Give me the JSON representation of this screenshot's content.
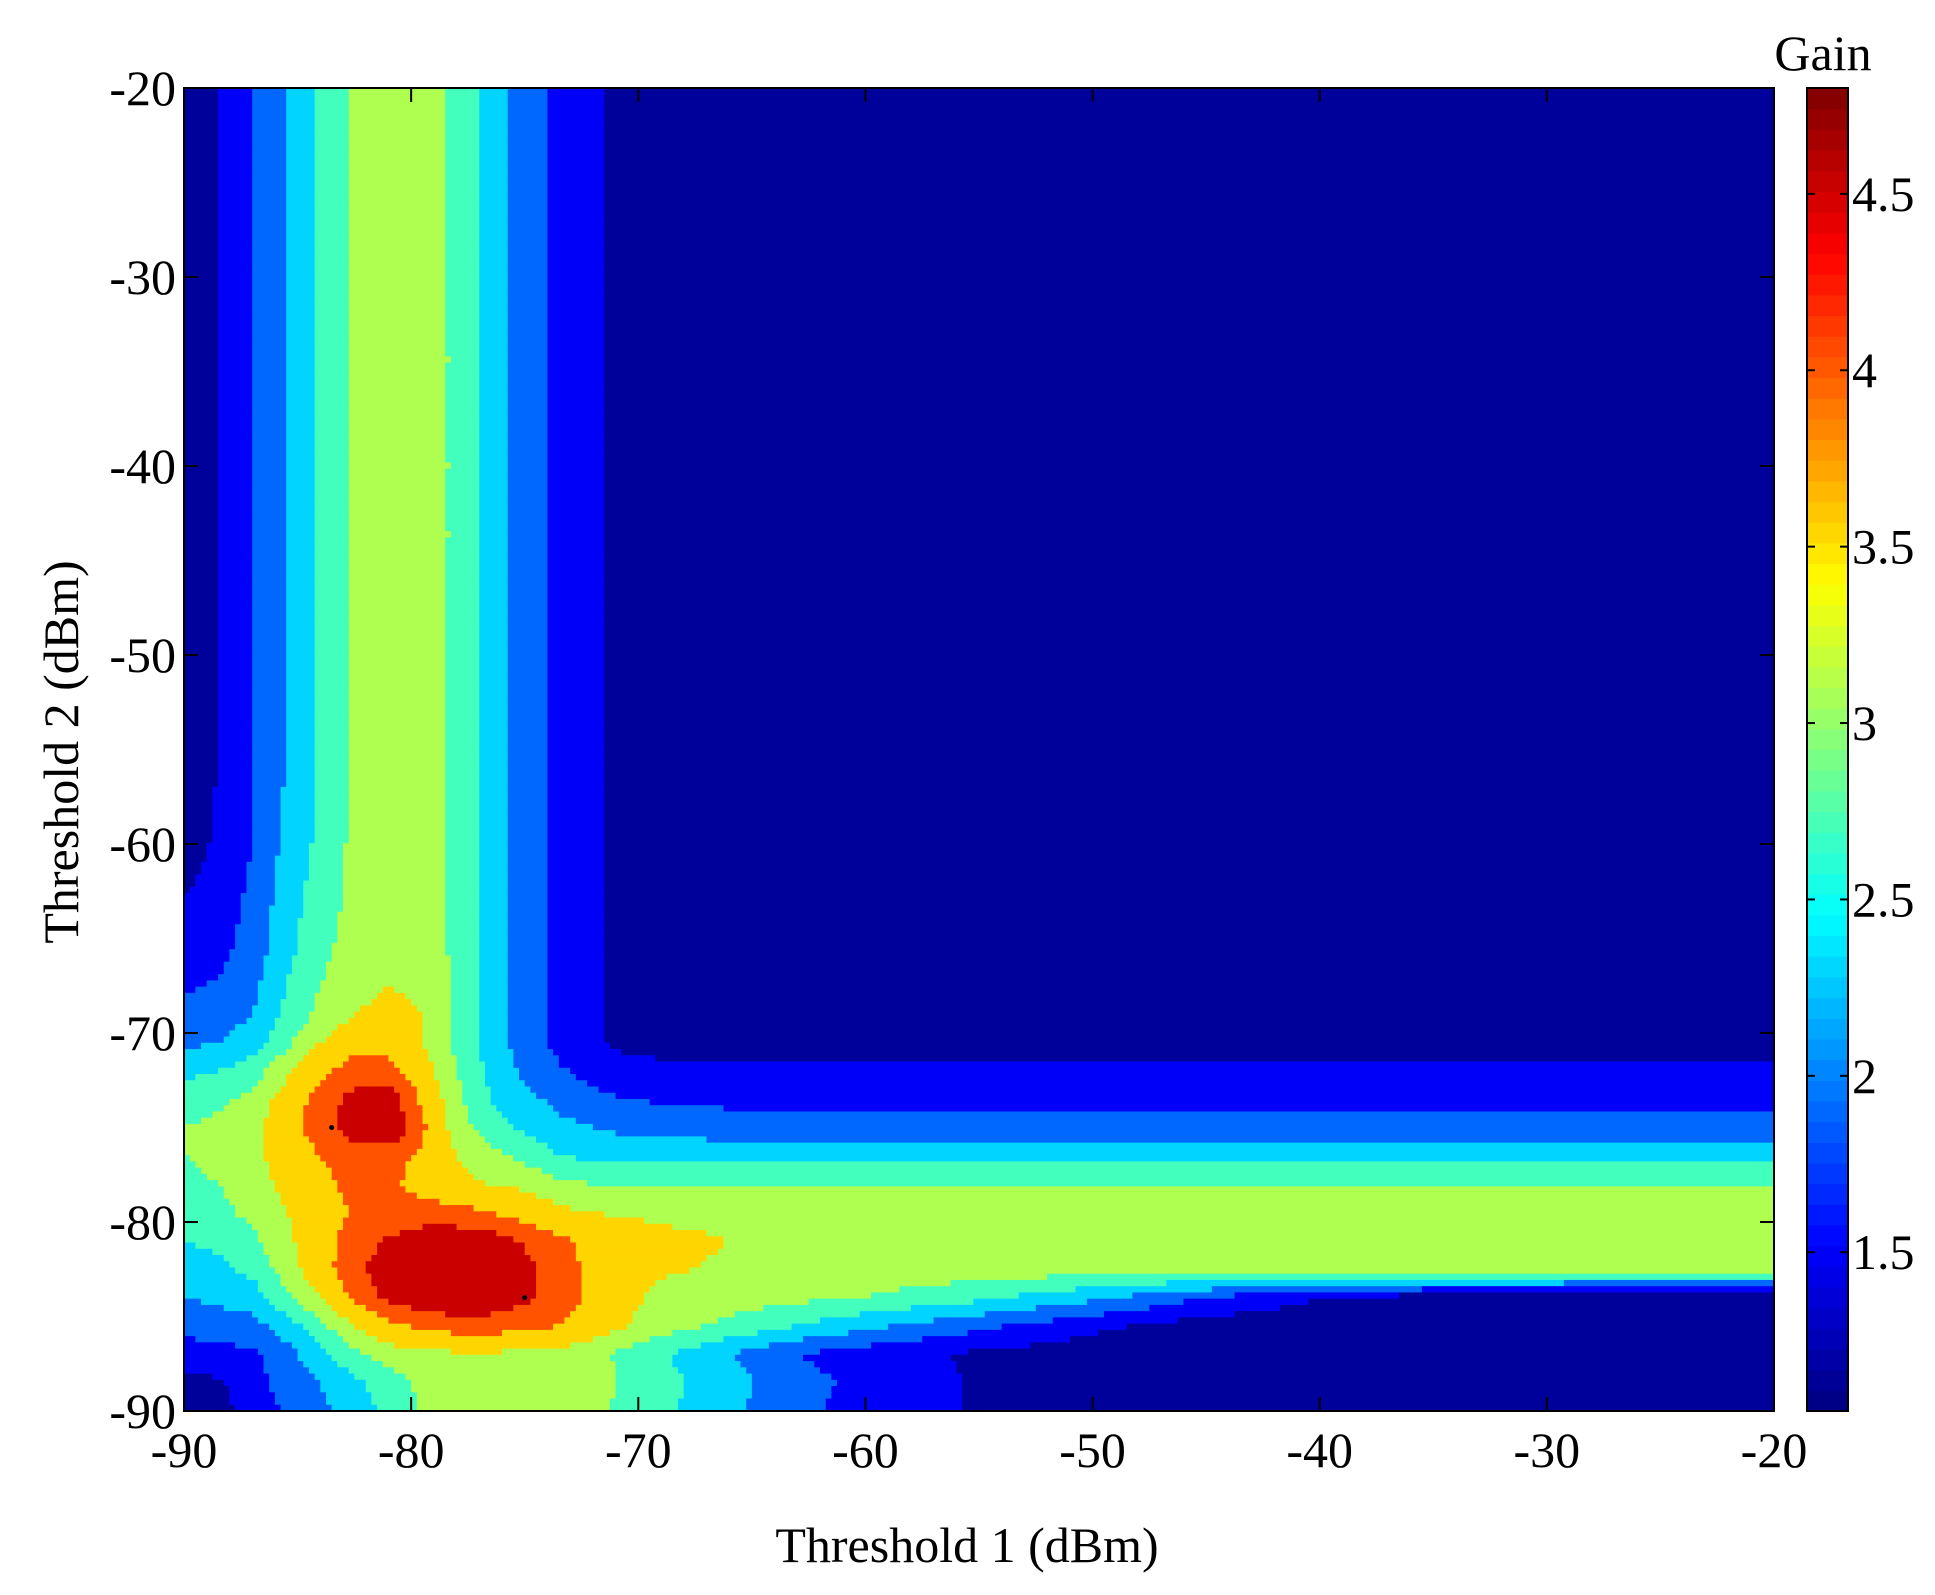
{
  "chart_data": {
    "type": "heatmap",
    "subtype": "filled-contour",
    "title": "",
    "xlabel": "Threshold 1 (dBm)",
    "ylabel": "Threshold 2 (dBm)",
    "xlim": [
      -90,
      -20
    ],
    "ylim": [
      -90,
      -20
    ],
    "x_ticks": [
      -90,
      -80,
      -70,
      -60,
      -50,
      -40,
      -30,
      -20
    ],
    "y_ticks": [
      -90,
      -80,
      -70,
      -60,
      -50,
      -40,
      -30,
      -20
    ],
    "grid": false,
    "colorbar": {
      "label": "Gain",
      "range": [
        1.05,
        4.8
      ],
      "ticks": [
        1.5,
        2,
        2.5,
        3,
        3.5,
        4,
        4.5
      ],
      "colormap": "jet"
    },
    "contour_levels": [
      1.0,
      1.3,
      1.7,
      2.1,
      2.5,
      2.9,
      3.3,
      3.8,
      4.25,
      4.8
    ],
    "peaks": [
      {
        "x": -83.5,
        "y": -75,
        "value": 4.6
      },
      {
        "x": -75,
        "y": -84,
        "value": 4.6
      }
    ],
    "contour_data": {
      "x": [
        -90,
        -88.5,
        -87,
        -85.5,
        -84,
        -82.5,
        -81,
        -79.5,
        -78,
        -76.5,
        -75,
        -73.5,
        -72,
        -70.5,
        -69,
        -66,
        -63,
        -60,
        -55,
        -50,
        -45,
        -40,
        -35,
        -30,
        -25,
        -20
      ],
      "y": [
        -90,
        -88.5,
        -87,
        -85.5,
        -84,
        -82.5,
        -81,
        -79.5,
        -78,
        -76.5,
        -75,
        -73.5,
        -72,
        -70.5,
        -69,
        -66,
        -63,
        -60,
        -55,
        -50,
        -45,
        -40,
        -35,
        -30,
        -25,
        -20
      ],
      "z": [
        [
          1.0,
          1.12,
          1.48,
          1.75,
          2.0,
          2.3,
          2.62,
          2.94,
          3.1,
          3.12,
          3.14,
          3.1,
          3.0,
          2.8,
          2.6,
          2.2,
          1.8,
          1.55,
          1.25,
          1.08,
          1.04,
          1.03,
          1.02,
          1.02,
          1.02,
          1.02
        ],
        [
          1.15,
          1.25,
          1.55,
          1.85,
          2.1,
          2.4,
          2.7,
          3.0,
          3.16,
          3.2,
          3.22,
          3.18,
          3.05,
          2.85,
          2.65,
          2.25,
          1.85,
          1.58,
          1.26,
          1.09,
          1.04,
          1.03,
          1.02,
          1.02,
          1.02,
          1.02
        ],
        [
          1.5,
          1.6,
          1.6,
          1.95,
          2.4,
          2.8,
          3.1,
          3.2,
          3.24,
          3.24,
          3.22,
          3.16,
          3.0,
          2.8,
          2.55,
          2.1,
          1.7,
          1.5,
          1.22,
          1.06,
          1.03,
          1.02,
          1.02,
          1.02,
          1.02,
          1.02
        ],
        [
          1.8,
          1.9,
          1.95,
          2.3,
          2.8,
          3.3,
          3.7,
          3.9,
          4.0,
          4.0,
          3.95,
          3.8,
          3.6,
          3.3,
          3.1,
          2.8,
          2.5,
          2.2,
          1.8,
          1.4,
          1.1,
          1.05,
          1.03,
          1.03,
          1.03,
          1.03
        ],
        [
          2.1,
          2.2,
          2.3,
          2.8,
          3.3,
          3.9,
          4.35,
          4.6,
          4.7,
          4.6,
          4.35,
          4.0,
          3.7,
          3.4,
          3.2,
          3.1,
          3.0,
          2.9,
          2.6,
          2.2,
          1.7,
          1.3,
          1.1,
          1.05,
          1.04,
          1.04
        ],
        [
          2.3,
          2.4,
          2.6,
          3.1,
          3.6,
          4.1,
          4.55,
          4.75,
          4.8,
          4.7,
          4.4,
          4.0,
          3.7,
          3.5,
          3.35,
          3.25,
          3.2,
          3.15,
          3.1,
          3.1,
          3.1,
          3.1,
          3.1,
          3.1,
          3.1,
          3.1
        ],
        [
          2.5,
          2.6,
          2.8,
          3.2,
          3.6,
          4.0,
          4.3,
          4.5,
          4.55,
          4.45,
          4.2,
          3.9,
          3.65,
          3.5,
          3.4,
          3.3,
          3.25,
          3.2,
          3.18,
          3.17,
          3.16,
          3.16,
          3.16,
          3.16,
          3.16,
          3.16
        ],
        [
          2.7,
          2.8,
          3.0,
          3.3,
          3.6,
          3.85,
          3.95,
          4.0,
          3.95,
          3.8,
          3.6,
          3.4,
          3.3,
          3.25,
          3.22,
          3.2,
          3.2,
          3.2,
          3.2,
          3.2,
          3.2,
          3.2,
          3.2,
          3.2,
          3.2,
          3.2
        ],
        [
          2.8,
          2.9,
          3.1,
          3.4,
          3.7,
          3.9,
          3.9,
          3.6,
          3.4,
          3.3,
          3.2,
          3.0,
          2.9,
          2.85,
          2.85,
          2.85,
          2.85,
          2.85,
          2.85,
          2.85,
          2.85,
          2.85,
          2.85,
          2.85,
          2.85,
          2.85
        ],
        [
          2.9,
          3.0,
          3.2,
          3.5,
          3.8,
          4.0,
          4.0,
          3.7,
          3.3,
          3.0,
          2.8,
          2.5,
          2.4,
          2.35,
          2.35,
          2.35,
          2.35,
          2.35,
          2.35,
          2.35,
          2.35,
          2.35,
          2.35,
          2.35,
          2.35,
          2.35
        ],
        [
          2.9,
          3.0,
          3.2,
          3.6,
          4.0,
          4.5,
          4.7,
          3.9,
          3.1,
          2.7,
          2.4,
          2.2,
          2.1,
          2.0,
          1.95,
          1.9,
          1.9,
          1.9,
          1.9,
          1.9,
          1.9,
          1.9,
          1.9,
          1.9,
          1.9,
          1.9
        ],
        [
          2.7,
          2.8,
          3.0,
          3.5,
          4.0,
          4.4,
          4.5,
          3.7,
          3.0,
          2.5,
          2.2,
          2.0,
          1.8,
          1.7,
          1.65,
          1.6,
          1.6,
          1.6,
          1.6,
          1.6,
          1.6,
          1.6,
          1.6,
          1.6,
          1.6,
          1.6
        ],
        [
          2.4,
          2.5,
          2.7,
          3.2,
          3.7,
          4.0,
          4.0,
          3.5,
          2.9,
          2.4,
          2.0,
          1.75,
          1.55,
          1.45,
          1.4,
          1.35,
          1.35,
          1.35,
          1.35,
          1.35,
          1.35,
          1.35,
          1.35,
          1.35,
          1.35,
          1.35
        ],
        [
          2.0,
          2.1,
          2.3,
          2.8,
          3.3,
          3.6,
          3.6,
          3.3,
          2.8,
          2.3,
          1.9,
          1.6,
          1.35,
          1.2,
          1.15,
          1.12,
          1.12,
          1.12,
          1.12,
          1.12,
          1.12,
          1.12,
          1.12,
          1.12,
          1.12,
          1.12
        ],
        [
          1.8,
          1.9,
          2.1,
          2.6,
          3.0,
          3.3,
          3.4,
          3.3,
          2.8,
          2.3,
          1.9,
          1.6,
          1.35,
          1.2,
          1.15,
          1.12,
          1.12,
          1.12,
          1.12,
          1.12,
          1.12,
          1.12,
          1.12,
          1.12,
          1.12,
          1.12
        ],
        [
          1.5,
          1.6,
          1.9,
          2.4,
          2.8,
          3.1,
          3.2,
          3.2,
          2.8,
          2.3,
          1.9,
          1.6,
          1.35,
          1.2,
          1.15,
          1.1,
          1.05,
          1.03,
          1.03,
          1.03,
          1.03,
          1.03,
          1.03,
          1.03,
          1.03,
          1.03
        ],
        [
          1.3,
          1.45,
          1.8,
          2.3,
          2.7,
          3.0,
          3.2,
          3.2,
          2.8,
          2.3,
          1.9,
          1.6,
          1.35,
          1.2,
          1.15,
          1.1,
          1.03,
          1.02,
          1.02,
          1.02,
          1.02,
          1.02,
          1.02,
          1.02,
          1.02,
          1.02
        ],
        [
          1.15,
          1.35,
          1.7,
          2.2,
          2.6,
          3.0,
          3.2,
          3.2,
          2.8,
          2.3,
          1.9,
          1.6,
          1.35,
          1.2,
          1.15,
          1.1,
          1.03,
          1.02,
          1.02,
          1.02,
          1.02,
          1.02,
          1.02,
          1.02,
          1.02,
          1.02
        ],
        [
          1.05,
          1.3,
          1.7,
          2.1,
          2.55,
          3.0,
          3.2,
          3.2,
          2.8,
          2.3,
          1.9,
          1.6,
          1.35,
          1.2,
          1.15,
          1.1,
          1.03,
          1.02,
          1.02,
          1.02,
          1.02,
          1.02,
          1.02,
          1.02,
          1.02,
          1.02
        ],
        [
          1.05,
          1.3,
          1.7,
          2.1,
          2.55,
          3.0,
          3.2,
          3.2,
          2.8,
          2.3,
          1.9,
          1.6,
          1.35,
          1.2,
          1.15,
          1.1,
          1.03,
          1.02,
          1.02,
          1.02,
          1.02,
          1.02,
          1.02,
          1.02,
          1.02,
          1.02
        ],
        [
          1.05,
          1.3,
          1.7,
          2.1,
          2.55,
          3.0,
          3.2,
          3.2,
          2.8,
          2.3,
          1.9,
          1.6,
          1.35,
          1.2,
          1.15,
          1.1,
          1.03,
          1.02,
          1.02,
          1.02,
          1.02,
          1.02,
          1.02,
          1.02,
          1.02,
          1.02
        ],
        [
          1.05,
          1.3,
          1.7,
          2.1,
          2.55,
          3.0,
          3.2,
          3.2,
          2.8,
          2.3,
          1.9,
          1.6,
          1.35,
          1.2,
          1.15,
          1.1,
          1.03,
          1.02,
          1.02,
          1.02,
          1.02,
          1.02,
          1.02,
          1.02,
          1.02,
          1.02
        ],
        [
          1.05,
          1.3,
          1.7,
          2.1,
          2.55,
          3.0,
          3.2,
          3.2,
          2.8,
          2.3,
          1.9,
          1.6,
          1.35,
          1.2,
          1.15,
          1.1,
          1.03,
          1.02,
          1.02,
          1.02,
          1.02,
          1.02,
          1.02,
          1.02,
          1.02,
          1.02
        ],
        [
          1.05,
          1.3,
          1.7,
          2.1,
          2.55,
          3.0,
          3.2,
          3.2,
          2.8,
          2.3,
          1.9,
          1.6,
          1.35,
          1.2,
          1.15,
          1.1,
          1.03,
          1.02,
          1.02,
          1.02,
          1.02,
          1.02,
          1.02,
          1.02,
          1.02,
          1.02
        ],
        [
          1.05,
          1.3,
          1.7,
          2.1,
          2.55,
          3.0,
          3.2,
          3.2,
          2.8,
          2.3,
          1.9,
          1.6,
          1.35,
          1.2,
          1.15,
          1.1,
          1.03,
          1.02,
          1.02,
          1.02,
          1.02,
          1.02,
          1.02,
          1.02,
          1.02,
          1.02
        ],
        [
          1.05,
          1.3,
          1.7,
          2.1,
          2.55,
          3.0,
          3.2,
          3.2,
          2.8,
          2.3,
          1.9,
          1.6,
          1.35,
          1.2,
          1.15,
          1.1,
          1.03,
          1.02,
          1.02,
          1.02,
          1.02,
          1.02,
          1.02,
          1.02,
          1.02,
          1.02
        ]
      ]
    }
  }
}
